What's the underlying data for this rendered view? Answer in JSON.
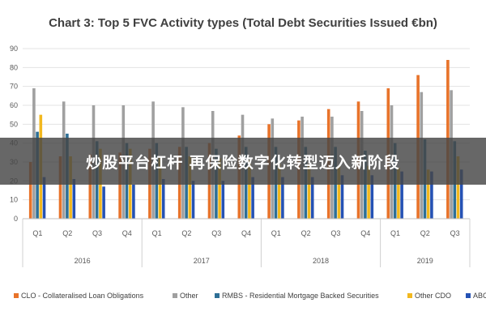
{
  "chart_data": {
    "type": "bar",
    "title": "Chart 3: Top 5 FVC Activity types (Total Debt Securities Issued €bn)",
    "categories": [
      "Q1",
      "Q2",
      "Q3",
      "Q4",
      "Q1",
      "Q2",
      "Q3",
      "Q4",
      "Q1",
      "Q2",
      "Q3",
      "Q4",
      "Q1",
      "Q2",
      "Q3"
    ],
    "year_groups": [
      {
        "label": "2016",
        "count": 4
      },
      {
        "label": "2017",
        "count": 4
      },
      {
        "label": "2018",
        "count": 4
      },
      {
        "label": "2019",
        "count": 3
      }
    ],
    "ylim": [
      0,
      90
    ],
    "yticks": [
      0,
      10,
      20,
      30,
      40,
      50,
      60,
      70,
      80,
      90
    ],
    "grid": true,
    "legend_position": "bottom",
    "series": [
      {
        "name": "CLO - Collateralised Loan Obligations",
        "color": "#e8732a",
        "values": [
          30,
          33,
          34,
          35,
          37,
          38,
          40,
          44,
          50,
          52,
          58,
          62,
          69,
          76,
          84
        ]
      },
      {
        "name": "Other",
        "color": "#a0a0a0",
        "values": [
          69,
          62,
          60,
          60,
          62,
          59,
          57,
          55,
          53,
          54,
          54,
          57,
          60,
          67,
          68
        ]
      },
      {
        "name": "RMBS - Residential Mortgage Backed Securities",
        "color": "#2e6f96",
        "values": [
          46,
          45,
          41,
          40,
          40,
          38,
          37,
          38,
          38,
          38,
          38,
          36,
          40,
          42,
          41
        ]
      },
      {
        "name": "Other CDO",
        "color": "#f2b81f",
        "values": [
          55,
          33,
          37,
          37,
          33,
          33,
          32,
          31,
          29,
          29,
          28,
          28,
          27,
          26,
          33
        ]
      },
      {
        "name": "ABCP",
        "color": "#2552b4",
        "values": [
          22,
          21,
          17,
          18,
          21,
          20,
          20,
          22,
          22,
          22,
          23,
          23,
          25,
          25,
          26
        ]
      }
    ]
  },
  "overlay": {
    "banner_text": "炒股平台杠杆 再保险数字化转型迈入新阶段"
  }
}
